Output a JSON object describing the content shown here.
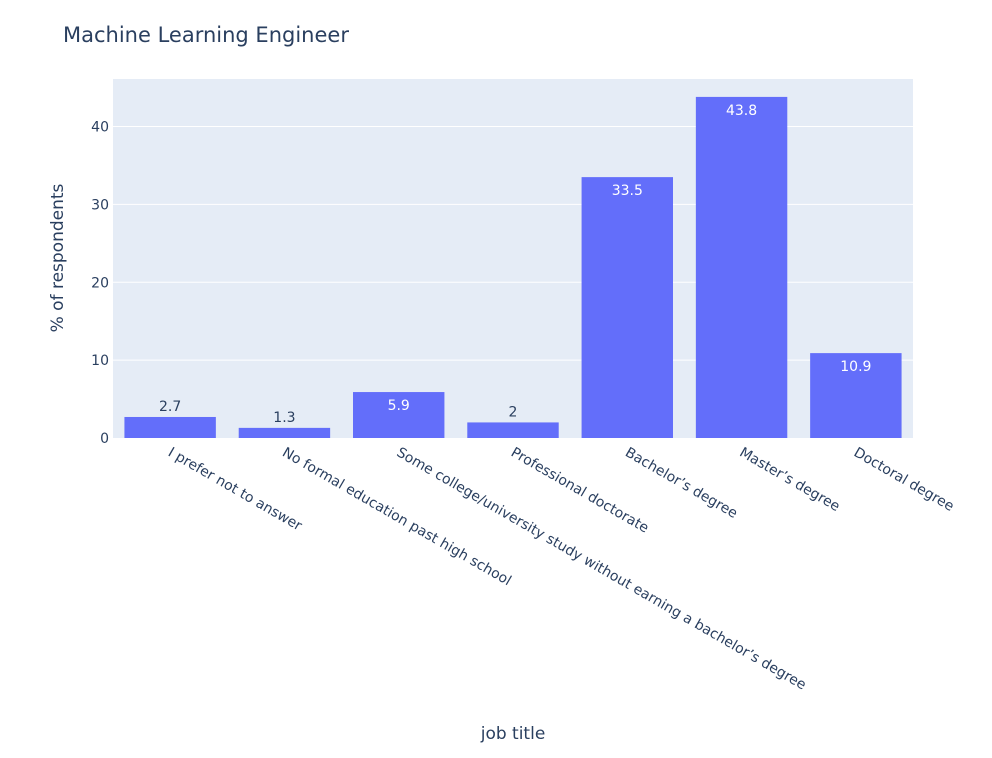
{
  "chart_data": {
    "type": "bar",
    "title": "Machine Learning Engineer",
    "xlabel": "job title",
    "ylabel": "% of respondents",
    "categories": [
      "I prefer not to answer",
      "No formal education past high school",
      "Some college/university study without earning a bachelor’s degree",
      "Professional doctorate",
      "Bachelor’s degree",
      "Master’s degree",
      "Doctoral degree"
    ],
    "values": [
      2.7,
      1.3,
      5.9,
      2,
      33.5,
      43.8,
      10.9
    ],
    "data_labels": [
      "2.7",
      "1.3",
      "5.9",
      "2",
      "33.5",
      "43.8",
      "10.9"
    ],
    "ylim": [
      0,
      46.1
    ],
    "yticks": [
      0,
      10,
      20,
      30,
      40
    ],
    "grid": true,
    "colors": {
      "bar": "#636efa",
      "plot_bg": "#e5ecf6",
      "grid": "#ffffff",
      "text": "#2a3f5f"
    }
  }
}
